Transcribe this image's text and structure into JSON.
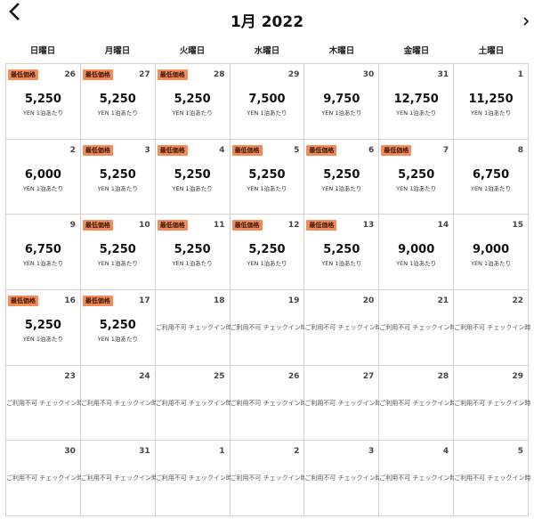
{
  "header": {
    "title": "1月 2022",
    "prev_icon": "chevron-left-icon",
    "next_icon": "chevron-right-icon"
  },
  "weekdays": [
    "日曜日",
    "月曜日",
    "火曜日",
    "水曜日",
    "木曜日",
    "金曜日",
    "土曜日"
  ],
  "labels": {
    "badge": "最低価格",
    "unit": "YEN 1泊あたり",
    "unavailable": "ご利用不可 チェックイン時"
  },
  "colors": {
    "badge": "#f58a5a",
    "grid_line": "#d2d2d2"
  },
  "days": [
    {
      "day": "26",
      "price": "5,250",
      "lowest": true,
      "available": true
    },
    {
      "day": "27",
      "price": "5,250",
      "lowest": true,
      "available": true
    },
    {
      "day": "28",
      "price": "5,250",
      "lowest": true,
      "available": true
    },
    {
      "day": "29",
      "price": "7,500",
      "lowest": false,
      "available": true
    },
    {
      "day": "30",
      "price": "9,750",
      "lowest": false,
      "available": true
    },
    {
      "day": "31",
      "price": "12,750",
      "lowest": false,
      "available": true
    },
    {
      "day": "1",
      "price": "11,250",
      "lowest": false,
      "available": true
    },
    {
      "day": "2",
      "price": "6,000",
      "lowest": false,
      "available": true
    },
    {
      "day": "3",
      "price": "5,250",
      "lowest": true,
      "available": true
    },
    {
      "day": "4",
      "price": "5,250",
      "lowest": true,
      "available": true
    },
    {
      "day": "5",
      "price": "5,250",
      "lowest": true,
      "available": true
    },
    {
      "day": "6",
      "price": "5,250",
      "lowest": true,
      "available": true
    },
    {
      "day": "7",
      "price": "5,250",
      "lowest": true,
      "available": true
    },
    {
      "day": "8",
      "price": "6,750",
      "lowest": false,
      "available": true
    },
    {
      "day": "9",
      "price": "6,750",
      "lowest": false,
      "available": true
    },
    {
      "day": "10",
      "price": "5,250",
      "lowest": true,
      "available": true
    },
    {
      "day": "11",
      "price": "5,250",
      "lowest": true,
      "available": true
    },
    {
      "day": "12",
      "price": "5,250",
      "lowest": true,
      "available": true
    },
    {
      "day": "13",
      "price": "5,250",
      "lowest": true,
      "available": true
    },
    {
      "day": "14",
      "price": "9,000",
      "lowest": false,
      "available": true
    },
    {
      "day": "15",
      "price": "9,000",
      "lowest": false,
      "available": true
    },
    {
      "day": "16",
      "price": "5,250",
      "lowest": true,
      "available": true
    },
    {
      "day": "17",
      "price": "5,250",
      "lowest": true,
      "available": true
    },
    {
      "day": "18",
      "price": "",
      "lowest": false,
      "available": false
    },
    {
      "day": "19",
      "price": "",
      "lowest": false,
      "available": false
    },
    {
      "day": "20",
      "price": "",
      "lowest": false,
      "available": false
    },
    {
      "day": "21",
      "price": "",
      "lowest": false,
      "available": false
    },
    {
      "day": "22",
      "price": "",
      "lowest": false,
      "available": false
    },
    {
      "day": "23",
      "price": "",
      "lowest": false,
      "available": false
    },
    {
      "day": "24",
      "price": "",
      "lowest": false,
      "available": false
    },
    {
      "day": "25",
      "price": "",
      "lowest": false,
      "available": false
    },
    {
      "day": "26",
      "price": "",
      "lowest": false,
      "available": false
    },
    {
      "day": "27",
      "price": "",
      "lowest": false,
      "available": false
    },
    {
      "day": "28",
      "price": "",
      "lowest": false,
      "available": false
    },
    {
      "day": "29",
      "price": "",
      "lowest": false,
      "available": false
    },
    {
      "day": "30",
      "price": "",
      "lowest": false,
      "available": false
    },
    {
      "day": "31",
      "price": "",
      "lowest": false,
      "available": false
    },
    {
      "day": "1",
      "price": "",
      "lowest": false,
      "available": false
    },
    {
      "day": "2",
      "price": "",
      "lowest": false,
      "available": false
    },
    {
      "day": "3",
      "price": "",
      "lowest": false,
      "available": false
    },
    {
      "day": "4",
      "price": "",
      "lowest": false,
      "available": false
    },
    {
      "day": "5",
      "price": "",
      "lowest": false,
      "available": false
    }
  ]
}
